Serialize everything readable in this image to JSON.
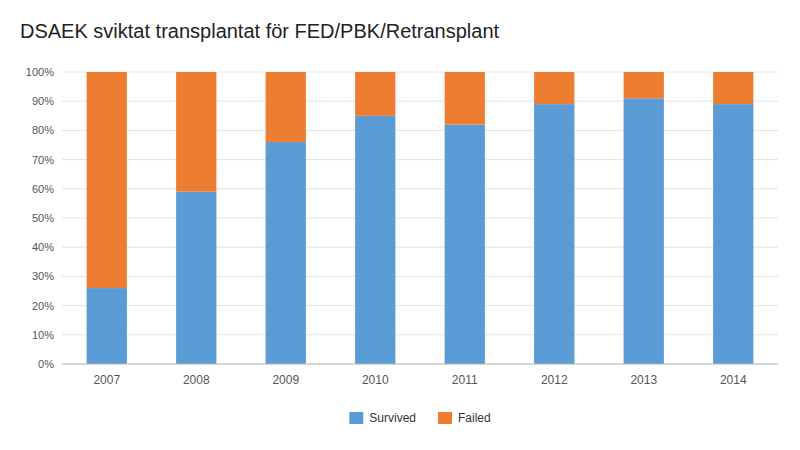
{
  "chart_data": {
    "type": "bar",
    "stacked": true,
    "title": "DSAEK sviktat transplantat för FED/PBK/Retransplant",
    "categories": [
      "2007",
      "2008",
      "2009",
      "2010",
      "2011",
      "2012",
      "2013",
      "2014"
    ],
    "series": [
      {
        "name": "Survived",
        "color": "#5B9BD5",
        "values": [
          26,
          59,
          76,
          85,
          82,
          89,
          91,
          89
        ]
      },
      {
        "name": "Failed",
        "color": "#ED7D31",
        "values": [
          74,
          41,
          24,
          15,
          18,
          11,
          9,
          11
        ]
      }
    ],
    "ylim": [
      0,
      100
    ],
    "yticks": [
      {
        "value": 0,
        "label": "0%"
      },
      {
        "value": 10,
        "label": "10%"
      },
      {
        "value": 20,
        "label": "20%"
      },
      {
        "value": 30,
        "label": "30%"
      },
      {
        "value": 40,
        "label": "40%"
      },
      {
        "value": 50,
        "label": "50%"
      },
      {
        "value": 60,
        "label": "60%"
      },
      {
        "value": 70,
        "label": "70%"
      },
      {
        "value": 80,
        "label": "80%"
      },
      {
        "value": 90,
        "label": "90%"
      },
      {
        "value": 100,
        "label": "100%"
      }
    ],
    "grid": true,
    "legend": "bottom"
  }
}
